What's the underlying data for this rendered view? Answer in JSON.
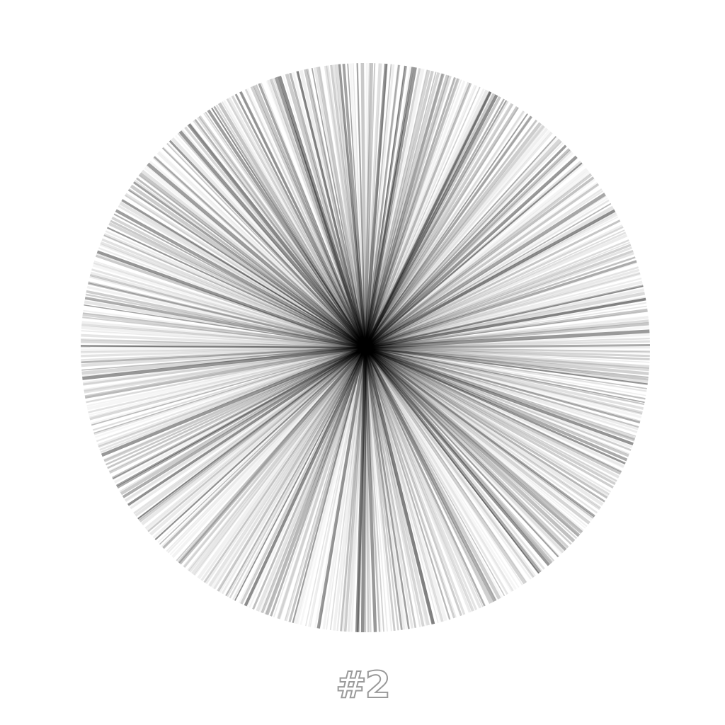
{
  "artwork": {
    "caption": "#2",
    "ray_color": "#000000",
    "background_color": "#ffffff",
    "caption_color": "#9a9a9a"
  }
}
